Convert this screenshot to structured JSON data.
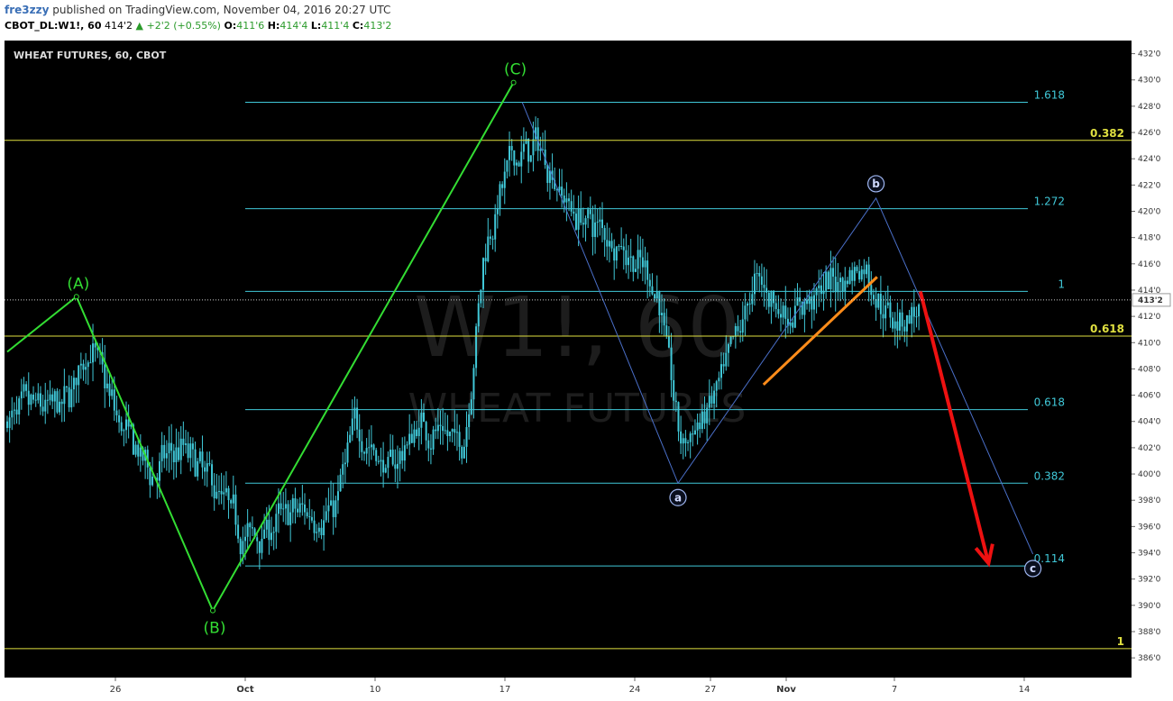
{
  "header": {
    "author": "fre3zzy",
    "published_text": "published on TradingView.com, November 04, 2016 20:27 UTC",
    "symbol": "CBOT_DL:W1!, 60",
    "last": "414'2",
    "change": "+2'2 (+0.55%)",
    "open_label": "O:",
    "open": "411'6",
    "high_label": "H:",
    "high": "414'4",
    "low_label": "L:",
    "low": "411'4",
    "close_label": "C:",
    "close": "413'2"
  },
  "chart_data": {
    "type": "candlestick",
    "title": "WHEAT FUTURES, 60, CBOT",
    "watermark_symbol": "W1!, 60",
    "watermark_name": "WHEAT FUTURES",
    "x_ticks": [
      {
        "label": "26",
        "pos": 0.1
      },
      {
        "label": "Oct",
        "pos": 0.22
      },
      {
        "label": "10",
        "pos": 0.34
      },
      {
        "label": "17",
        "pos": 0.46
      },
      {
        "label": "24",
        "pos": 0.58
      },
      {
        "label": "27",
        "pos": 0.65
      },
      {
        "label": "Nov",
        "pos": 0.72
      },
      {
        "label": "7",
        "pos": 0.82
      },
      {
        "label": "14",
        "pos": 0.94
      }
    ],
    "y_ticks": [
      "386'0",
      "388'0",
      "390'0",
      "392'0",
      "394'0",
      "396'0",
      "398'0",
      "400'0",
      "402'0",
      "404'0",
      "406'0",
      "408'0",
      "410'0",
      "412'0",
      "414'0",
      "416'0",
      "418'0",
      "420'0",
      "422'0",
      "424'0",
      "426'0",
      "428'0",
      "430'0",
      "432'0"
    ],
    "ylim": [
      384.5,
      433
    ],
    "current_price_label": "413'2",
    "current_price": 413.25,
    "fib_levels": [
      {
        "label": "1.618",
        "value": 428.3,
        "color": "#40c8d8"
      },
      {
        "label": "0.382",
        "value": 425.4,
        "color": "#e0e040"
      },
      {
        "label": "1.272",
        "value": 420.2,
        "color": "#40c8d8"
      },
      {
        "label": "1",
        "value": 413.9,
        "color": "#40c8d8"
      },
      {
        "label": "0.618",
        "value": 410.5,
        "color": "#e0e040"
      },
      {
        "label": "0.618",
        "value": 404.9,
        "color": "#40c8d8"
      },
      {
        "label": "0.382",
        "value": 399.3,
        "color": "#40c8d8"
      },
      {
        "label": "0.114",
        "value": 393.0,
        "color": "#40c8d8"
      },
      {
        "label": "1",
        "value": 386.7,
        "color": "#e0e040"
      }
    ],
    "wave_main": [
      {
        "label": "",
        "pos": 0.0,
        "value": 409.3
      },
      {
        "label": "(A)",
        "pos": 0.064,
        "value": 413.5
      },
      {
        "label": "(B)",
        "pos": 0.19,
        "value": 389.6
      },
      {
        "label": "(C)",
        "pos": 0.468,
        "value": 429.8
      }
    ],
    "wave_minor": [
      {
        "label": "",
        "pos": 0.476,
        "value": 428.3
      },
      {
        "label": "a",
        "pos": 0.62,
        "value": 399.3
      },
      {
        "label": "b",
        "pos": 0.803,
        "value": 421.0
      },
      {
        "label": "c",
        "pos": 0.948,
        "value": 393.9
      }
    ],
    "trendline": {
      "from": {
        "pos": 0.699,
        "value": 406.8
      },
      "to": {
        "pos": 0.804,
        "value": 415.0
      },
      "color": "#ff8c1a"
    },
    "forecast_arrow": {
      "from": {
        "pos": 0.844,
        "value": 413.9
      },
      "to": {
        "pos": 0.907,
        "value": 393.2
      },
      "color": "#ee1111"
    },
    "colors": {
      "candles": "#40c8d8",
      "wave_main": "#33dd33",
      "wave_minor": "#4a6fc8",
      "fib_cyan": "#40c8d8",
      "fib_yellow": "#e0e040",
      "background": "#000000"
    }
  }
}
